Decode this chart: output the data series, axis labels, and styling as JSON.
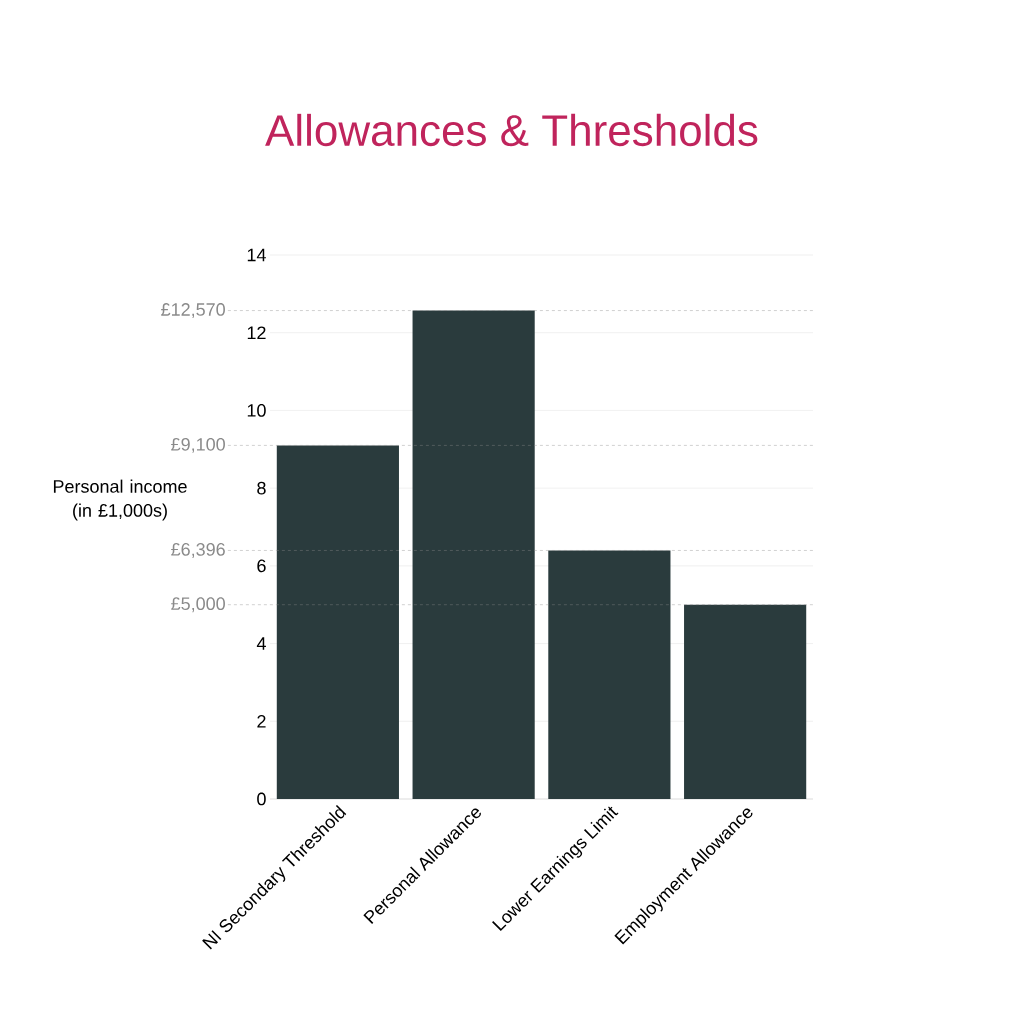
{
  "chart_data": {
    "type": "bar",
    "title": "Allowances & Thresholds",
    "ylabel": "Personal income (in £1,000s)",
    "categories": [
      "NI Secondary Threshold",
      "Personal Allowance",
      "Lower Earnings Limit",
      "Employment Allowance"
    ],
    "values": [
      9.1,
      12.57,
      6.396,
      5.0
    ],
    "color": "#2a3b3d",
    "ylim": [
      0,
      14
    ],
    "yticks": [
      0,
      2,
      4,
      6,
      8,
      10,
      12,
      14
    ],
    "grid": "y",
    "ref_lines": [
      {
        "axis": "y",
        "value": 12.57,
        "label": "£12,570",
        "color": "#8a8a8a",
        "line_style": "dashed"
      },
      {
        "axis": "y",
        "value": 9.1,
        "label": "£9,100",
        "color": "#8a8a8a",
        "line_style": "dashed"
      },
      {
        "axis": "y",
        "value": 6.396,
        "label": "£6,396",
        "color": "#8a8a8a",
        "line_style": "dashed"
      },
      {
        "axis": "y",
        "value": 5.0,
        "label": "£5,000",
        "color": "#8a8a8a",
        "line_style": "dashed"
      }
    ]
  }
}
